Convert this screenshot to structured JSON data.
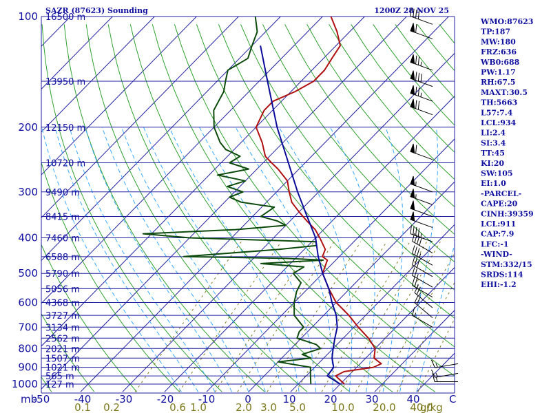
{
  "colors": {
    "isobar": "#1e1ea0",
    "isotherm": "#1e1ea0",
    "dry_adiabat": "#2fa02f",
    "moist_adiabat": "#3aa8ff",
    "mixing_ratio": "#7d7a1e",
    "temperature": "#b01010",
    "dewpoint": "#0c4a0c",
    "parcel": "#0a0a9a",
    "wind": "#000000",
    "text": "#1010a0",
    "mix_text": "#7d7a1e"
  },
  "chart_data": {
    "type": "line",
    "title": "SAZR (87623) Sounding",
    "subtitle": "1200Z 28 NOV 25",
    "y_unit_label": "mb",
    "x_unit_label": "C",
    "mixing_unit_label": "g/kg",
    "pressure_levels": [
      1000,
      900,
      800,
      700,
      600,
      500,
      400,
      300,
      200,
      100
    ],
    "pressure_tick_labels": [
      "1000",
      "900",
      "800",
      "700",
      "600",
      "500",
      "400",
      "300",
      "200",
      "100"
    ],
    "temperature_ticks": [
      -50,
      -40,
      -30,
      -20,
      -10,
      0,
      10,
      20,
      30,
      40
    ],
    "temperature_tick_labels": [
      "-50",
      "-40",
      "-30",
      "-20",
      "-10",
      "0",
      "10",
      "20",
      "30",
      "40"
    ],
    "mixing_ratio_labels": [
      "0.1",
      "0.2",
      "0.6",
      "1.0",
      "2.0",
      "3.0",
      "5.0",
      "10.0",
      "20.0",
      "40.0"
    ],
    "mixing_ratio_positions": [
      -40,
      -33,
      -17,
      -12,
      -1,
      5,
      12,
      23,
      33,
      42
    ],
    "height_labels": [
      {
        "p": 1000,
        "label": "127 m"
      },
      {
        "p": 950,
        "label": "565 m"
      },
      {
        "p": 900,
        "label": "1021 m"
      },
      {
        "p": 850,
        "label": "1507 m"
      },
      {
        "p": 800,
        "label": "2021 m"
      },
      {
        "p": 750,
        "label": "2562 m"
      },
      {
        "p": 700,
        "label": "3134 m"
      },
      {
        "p": 650,
        "label": "3727 m"
      },
      {
        "p": 600,
        "label": "4368 m"
      },
      {
        "p": 550,
        "label": "5056 m"
      },
      {
        "p": 500,
        "label": "5790 m"
      },
      {
        "p": 450,
        "label": "6588 m"
      },
      {
        "p": 400,
        "label": "7460 m"
      },
      {
        "p": 350,
        "label": "8415 m"
      },
      {
        "p": 300,
        "label": "9490 m"
      },
      {
        "p": 250,
        "label": "10720 m"
      },
      {
        "p": 200,
        "label": "12150 m"
      },
      {
        "p": 150,
        "label": "13950 m"
      },
      {
        "p": 100,
        "label": "16500 m"
      }
    ],
    "xlim": [
      -50,
      50
    ],
    "plim": [
      1050,
      100
    ],
    "series": [
      {
        "key": "temperature",
        "points": [
          [
            1000,
            21
          ],
          [
            950,
            17
          ],
          [
            925,
            18
          ],
          [
            900,
            24
          ],
          [
            880,
            25
          ],
          [
            850,
            22
          ],
          [
            800,
            20
          ],
          [
            750,
            16
          ],
          [
            700,
            11
          ],
          [
            650,
            6
          ],
          [
            600,
            0
          ],
          [
            550,
            -5
          ],
          [
            500,
            -10
          ],
          [
            480,
            -11
          ],
          [
            460,
            -12
          ],
          [
            450,
            -14
          ],
          [
            430,
            -15
          ],
          [
            400,
            -19
          ],
          [
            380,
            -22
          ],
          [
            360,
            -26
          ],
          [
            340,
            -30
          ],
          [
            320,
            -34
          ],
          [
            300,
            -37
          ],
          [
            280,
            -40
          ],
          [
            260,
            -45
          ],
          [
            250,
            -48
          ],
          [
            240,
            -51
          ],
          [
            220,
            -55
          ],
          [
            200,
            -60
          ],
          [
            180,
            -62
          ],
          [
            170,
            -62
          ],
          [
            160,
            -59
          ],
          [
            150,
            -57
          ],
          [
            140,
            -57
          ],
          [
            130,
            -58
          ],
          [
            120,
            -59
          ],
          [
            110,
            -63
          ],
          [
            100,
            -68
          ]
        ]
      },
      {
        "key": "dewpoint",
        "points": [
          [
            1000,
            13
          ],
          [
            950,
            11
          ],
          [
            900,
            9
          ],
          [
            870,
            0
          ],
          [
            850,
            7
          ],
          [
            830,
            4
          ],
          [
            800,
            7
          ],
          [
            780,
            5
          ],
          [
            750,
            -1
          ],
          [
            720,
            -2
          ],
          [
            700,
            -2
          ],
          [
            650,
            -7
          ],
          [
            600,
            -10
          ],
          [
            560,
            -12
          ],
          [
            530,
            -13
          ],
          [
            500,
            -17
          ],
          [
            480,
            -16
          ],
          [
            470,
            -27
          ],
          [
            460,
            -13
          ],
          [
            455,
            -22
          ],
          [
            450,
            -47
          ],
          [
            430,
            -26
          ],
          [
            420,
            -18
          ],
          [
            410,
            -19
          ],
          [
            400,
            -50
          ],
          [
            390,
            -62
          ],
          [
            380,
            -41
          ],
          [
            370,
            -30
          ],
          [
            360,
            -33
          ],
          [
            350,
            -38
          ],
          [
            330,
            -37
          ],
          [
            320,
            -46
          ],
          [
            310,
            -50
          ],
          [
            300,
            -48
          ],
          [
            290,
            -53
          ],
          [
            280,
            -50
          ],
          [
            270,
            -58
          ],
          [
            260,
            -52
          ],
          [
            250,
            -58
          ],
          [
            240,
            -57
          ],
          [
            230,
            -62
          ],
          [
            220,
            -65
          ],
          [
            200,
            -70
          ],
          [
            180,
            -74
          ],
          [
            160,
            -76
          ],
          [
            150,
            -78
          ],
          [
            140,
            -80
          ],
          [
            130,
            -78
          ],
          [
            120,
            -80
          ],
          [
            110,
            -82
          ],
          [
            100,
            -86
          ]
        ]
      },
      {
        "key": "parcel",
        "points": [
          [
            1000,
            20
          ],
          [
            950,
            15
          ],
          [
            900,
            14.5
          ],
          [
            850,
            12
          ],
          [
            800,
            10
          ],
          [
            750,
            8
          ],
          [
            700,
            6
          ],
          [
            650,
            3
          ],
          [
            600,
            -1
          ],
          [
            550,
            -5
          ],
          [
            500,
            -10
          ],
          [
            450,
            -15
          ],
          [
            400,
            -20
          ],
          [
            350,
            -27
          ],
          [
            300,
            -35
          ],
          [
            250,
            -44
          ],
          [
            200,
            -55
          ],
          [
            150,
            -68
          ],
          [
            120,
            -78
          ]
        ]
      }
    ],
    "indices": [
      "WMO:87623",
      "TP:187",
      "MW:180",
      "FRZ:636",
      "WB0:688",
      "PW:1.17",
      "RH:67.5",
      "MAXT:30.5",
      "TH:5663",
      "L57:7.4",
      "LCL:934",
      "LI:2.4",
      "SI:3.4",
      "TT:45",
      "KI:20",
      "SW:105",
      "EI:1.0",
      "-PARCEL-",
      "CAPE:20",
      "CINH:39359",
      "LCL:911",
      "CAP:7.9",
      "LFC:-1",
      "-WIND-",
      "STM:332/15",
      "SRDS:114",
      "EHI:-1.2"
    ],
    "wind_barbs": [
      {
        "p": 985,
        "dir": 270,
        "kt": 15
      },
      {
        "p": 935,
        "dir": 260,
        "kt": 15
      },
      {
        "p": 880,
        "dir": 260,
        "kt": 15
      },
      {
        "p": 700,
        "dir": 300,
        "kt": 15
      },
      {
        "p": 660,
        "dir": 310,
        "kt": 20
      },
      {
        "p": 620,
        "dir": 310,
        "kt": 25
      },
      {
        "p": 580,
        "dir": 300,
        "kt": 25
      },
      {
        "p": 545,
        "dir": 300,
        "kt": 25
      },
      {
        "p": 510,
        "dir": 300,
        "kt": 30
      },
      {
        "p": 475,
        "dir": 300,
        "kt": 35
      },
      {
        "p": 440,
        "dir": 300,
        "kt": 40
      },
      {
        "p": 410,
        "dir": 290,
        "kt": 45
      },
      {
        "p": 375,
        "dir": 290,
        "kt": 50
      },
      {
        "p": 350,
        "dir": 290,
        "kt": 50
      },
      {
        "p": 325,
        "dir": 290,
        "kt": 55
      },
      {
        "p": 300,
        "dir": 290,
        "kt": 55
      },
      {
        "p": 245,
        "dir": 290,
        "kt": 60
      },
      {
        "p": 185,
        "dir": 290,
        "kt": 70
      },
      {
        "p": 170,
        "dir": 290,
        "kt": 75
      },
      {
        "p": 155,
        "dir": 290,
        "kt": 80
      },
      {
        "p": 140,
        "dir": 290,
        "kt": 75
      },
      {
        "p": 115,
        "dir": 290,
        "kt": 60
      },
      {
        "p": 105,
        "dir": 290,
        "kt": 40
      }
    ]
  }
}
